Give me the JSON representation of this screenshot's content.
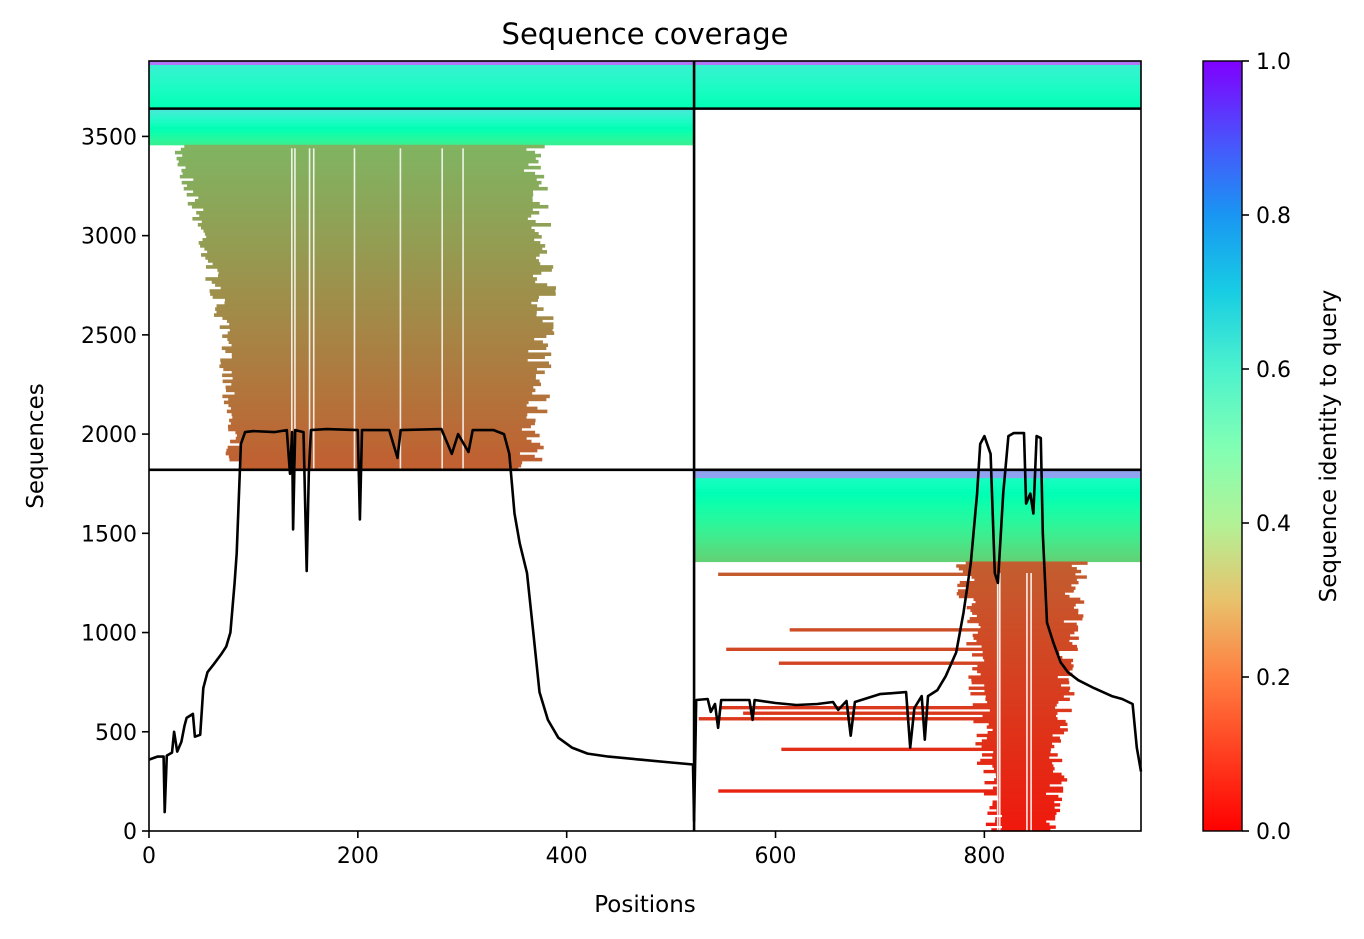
{
  "chart_data": {
    "type": "heatmap",
    "title": "Sequence coverage",
    "xlabel": "Positions",
    "ylabel": "Sequences",
    "xlim": [
      0,
      950
    ],
    "ylim": [
      0,
      3880
    ],
    "x_ticks": [
      "0",
      "200",
      "400",
      "600",
      "800"
    ],
    "y_ticks": [
      "0",
      "500",
      "1000",
      "1500",
      "2000",
      "2500",
      "3000",
      "3500"
    ],
    "colorbar": {
      "label": "Sequence identity to query",
      "range": [
        0.0,
        1.0
      ],
      "ticks": [
        "0.0",
        "0.2",
        "0.4",
        "0.6",
        "0.8",
        "1.0"
      ],
      "colormap": "rainbow_r"
    },
    "chain_boundary_x": 522,
    "msa_blocks": [
      {
        "name": "paired",
        "x": [
          0,
          950
        ],
        "y": [
          3640,
          3880
        ],
        "identity_range": [
          0.5,
          0.8
        ]
      },
      {
        "name": "chain-A",
        "x": [
          0,
          522
        ],
        "y": [
          1820,
          3640
        ],
        "identity_range": [
          0.12,
          0.65
        ]
      },
      {
        "name": "chain-B",
        "x": [
          522,
          950
        ],
        "y": [
          0,
          1820
        ],
        "identity_range": [
          0.03,
          0.8
        ]
      }
    ],
    "coverage_line": {
      "color": "#000000",
      "points": [
        [
          0,
          360
        ],
        [
          8,
          375
        ],
        [
          14,
          375
        ],
        [
          15,
          95
        ],
        [
          17,
          380
        ],
        [
          22,
          395
        ],
        [
          24,
          500
        ],
        [
          27,
          400
        ],
        [
          31,
          450
        ],
        [
          34,
          530
        ],
        [
          36,
          570
        ],
        [
          42,
          590
        ],
        [
          44,
          475
        ],
        [
          49,
          485
        ],
        [
          52,
          720
        ],
        [
          56,
          800
        ],
        [
          62,
          840
        ],
        [
          69,
          890
        ],
        [
          74,
          930
        ],
        [
          78,
          1000
        ],
        [
          82,
          1250
        ],
        [
          84,
          1400
        ],
        [
          88,
          1950
        ],
        [
          92,
          2010
        ],
        [
          100,
          2015
        ],
        [
          120,
          2010
        ],
        [
          132,
          2020
        ],
        [
          135,
          1800
        ],
        [
          137,
          2010
        ],
        [
          138,
          1520
        ],
        [
          140,
          2020
        ],
        [
          148,
          2010
        ],
        [
          151,
          1310
        ],
        [
          153,
          1800
        ],
        [
          155,
          2020
        ],
        [
          170,
          2025
        ],
        [
          200,
          2020
        ],
        [
          202,
          1570
        ],
        [
          204,
          2020
        ],
        [
          230,
          2020
        ],
        [
          238,
          1880
        ],
        [
          241,
          2020
        ],
        [
          280,
          2025
        ],
        [
          290,
          1900
        ],
        [
          296,
          2000
        ],
        [
          306,
          1910
        ],
        [
          310,
          2020
        ],
        [
          330,
          2020
        ],
        [
          340,
          2000
        ],
        [
          345,
          1900
        ],
        [
          350,
          1600
        ],
        [
          355,
          1450
        ],
        [
          362,
          1300
        ],
        [
          368,
          1000
        ],
        [
          374,
          700
        ],
        [
          382,
          560
        ],
        [
          392,
          470
        ],
        [
          405,
          420
        ],
        [
          420,
          390
        ],
        [
          440,
          375
        ],
        [
          470,
          360
        ],
        [
          500,
          345
        ],
        [
          521,
          335
        ],
        [
          522,
          50
        ],
        [
          524,
          660
        ],
        [
          535,
          665
        ],
        [
          538,
          600
        ],
        [
          542,
          640
        ],
        [
          545,
          520
        ],
        [
          548,
          660
        ],
        [
          560,
          660
        ],
        [
          575,
          660
        ],
        [
          578,
          560
        ],
        [
          580,
          660
        ],
        [
          600,
          645
        ],
        [
          620,
          635
        ],
        [
          640,
          640
        ],
        [
          655,
          650
        ],
        [
          660,
          610
        ],
        [
          668,
          655
        ],
        [
          672,
          480
        ],
        [
          676,
          650
        ],
        [
          700,
          690
        ],
        [
          725,
          700
        ],
        [
          729,
          420
        ],
        [
          733,
          620
        ],
        [
          740,
          680
        ],
        [
          743,
          460
        ],
        [
          746,
          680
        ],
        [
          755,
          710
        ],
        [
          763,
          780
        ],
        [
          773,
          900
        ],
        [
          780,
          1100
        ],
        [
          787,
          1350
        ],
        [
          793,
          1700
        ],
        [
          796,
          1950
        ],
        [
          800,
          1990
        ],
        [
          806,
          1900
        ],
        [
          810,
          1300
        ],
        [
          813,
          1250
        ],
        [
          818,
          1700
        ],
        [
          823,
          1990
        ],
        [
          828,
          2005
        ],
        [
          838,
          2005
        ],
        [
          840,
          1650
        ],
        [
          844,
          1700
        ],
        [
          847,
          1600
        ],
        [
          850,
          1990
        ],
        [
          854,
          1980
        ],
        [
          856,
          1500
        ],
        [
          860,
          1050
        ],
        [
          866,
          950
        ],
        [
          873,
          850
        ],
        [
          880,
          800
        ],
        [
          890,
          760
        ],
        [
          905,
          720
        ],
        [
          922,
          680
        ],
        [
          932,
          665
        ],
        [
          942,
          640
        ],
        [
          946,
          420
        ],
        [
          950,
          300
        ]
      ]
    }
  }
}
